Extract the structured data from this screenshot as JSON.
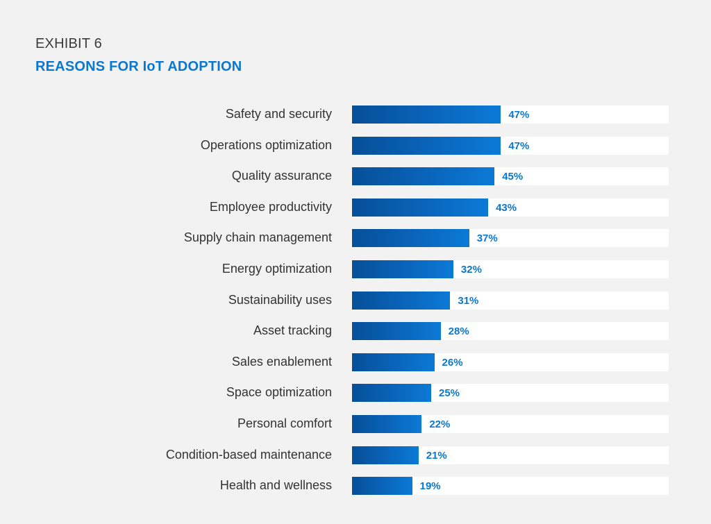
{
  "header": {
    "exhibit": "EXHIBIT 6",
    "title": "REASONS FOR IoT ADOPTION"
  },
  "colors": {
    "title_accent": "#0a78d0",
    "bar_start": "#064f98",
    "bar_end": "#0b7ad6",
    "track": "#ffffff",
    "background": "#f2f2f2"
  },
  "chart_data": {
    "type": "bar",
    "orientation": "horizontal",
    "title": "REASONS FOR IoT ADOPTION",
    "xlabel": "",
    "ylabel": "",
    "xlim": [
      0,
      100
    ],
    "grid": false,
    "categories": [
      "Safety and security",
      "Operations optimization",
      "Quality assurance",
      "Employee productivity",
      "Supply chain management",
      "Energy optimization",
      "Sustainability uses",
      "Asset tracking",
      "Sales enablement",
      "Space optimization",
      "Personal comfort",
      "Condition-based maintenance",
      "Health and wellness"
    ],
    "values": [
      47,
      47,
      45,
      43,
      37,
      32,
      31,
      28,
      26,
      25,
      22,
      21,
      19
    ],
    "value_labels": [
      "47%",
      "47%",
      "45%",
      "43%",
      "37%",
      "32%",
      "31%",
      "28%",
      "26%",
      "25%",
      "22%",
      "21%",
      "19%"
    ]
  }
}
